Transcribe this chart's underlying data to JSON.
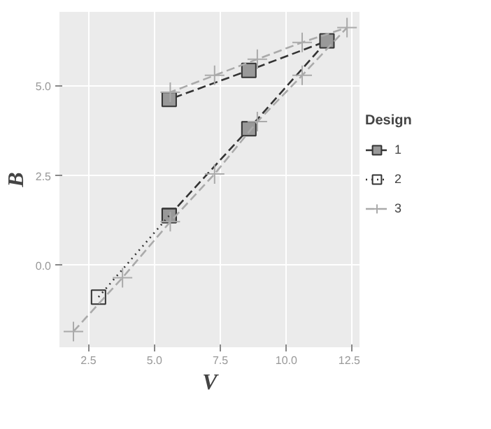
{
  "chart_data": {
    "type": "line",
    "xlabel": "V",
    "ylabel": "B",
    "legend_title": "Design",
    "xlim": [
      1.4,
      12.8
    ],
    "ylim": [
      -2.28,
      7.07
    ],
    "xticks": [
      2.5,
      {
        "value": 5,
        "label": "5.0"
      },
      7.5,
      {
        "value": 10,
        "label": "10.0"
      },
      12.5
    ],
    "yticks": [
      {
        "value": 0,
        "label": "0.0"
      },
      2.5,
      {
        "value": 5,
        "label": "5.0"
      }
    ],
    "grid": true,
    "legend": "right",
    "series": [
      {
        "name": "1",
        "color": "#333333",
        "marker": "square",
        "line_style": "dashed",
        "x": [
          5.56,
          8.58,
          11.54,
          8.58,
          5.56
        ],
        "values": [
          1.39,
          3.81,
          6.26,
          5.44,
          4.63
        ]
      },
      {
        "name": "2",
        "color": "#333333",
        "marker": "square",
        "line_style": "dotted",
        "x": [
          2.88,
          5.56
        ],
        "values": [
          -0.88,
          1.39
        ]
      },
      {
        "name": "3",
        "color": "#aaaaaa",
        "marker": "cross",
        "line_style": "dashed",
        "x": [
          1.93,
          3.79,
          5.6,
          7.28,
          8.9,
          10.6,
          12.3,
          10.6,
          8.9,
          7.28,
          5.6
        ],
        "values": [
          -1.84,
          -0.34,
          1.22,
          2.55,
          4.01,
          5.3,
          6.63,
          6.22,
          5.75,
          5.3,
          4.83
        ]
      }
    ]
  }
}
